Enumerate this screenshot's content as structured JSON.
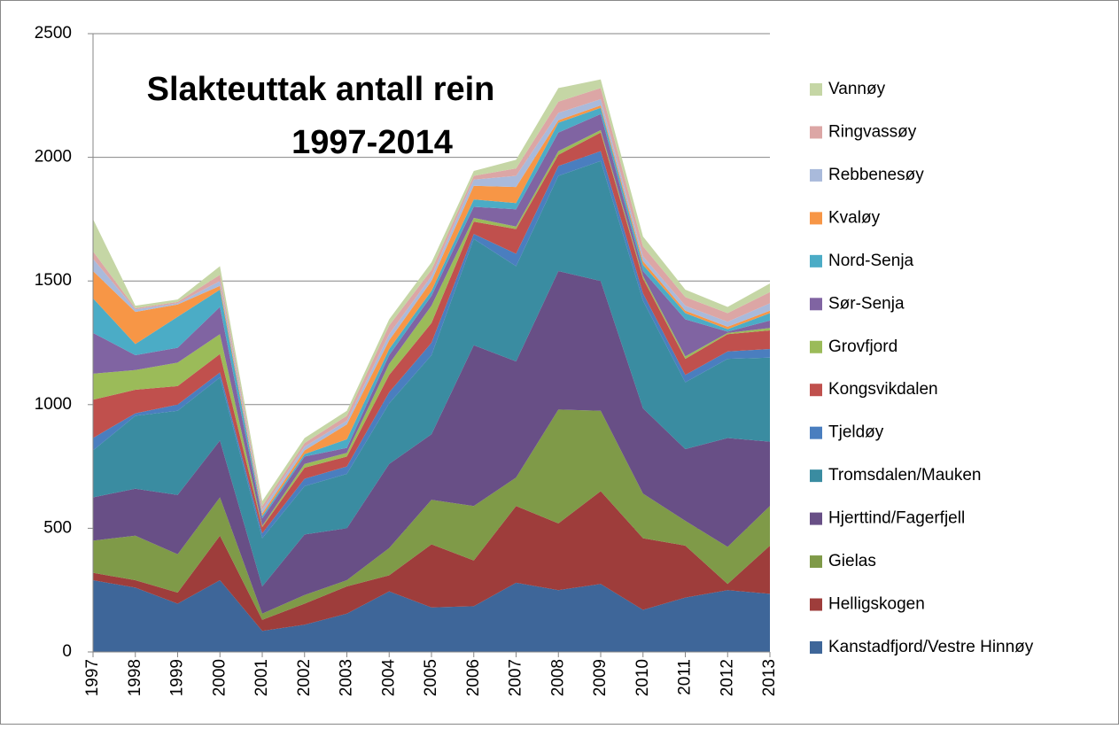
{
  "chart_data": {
    "type": "stacked-area",
    "title": [
      "Slakteuttak antall rein",
      "1997-2014"
    ],
    "categories": [
      "1997",
      "1998",
      "1999",
      "2000",
      "2001",
      "2002",
      "2003",
      "2004",
      "2005",
      "2006",
      "2007",
      "2008",
      "2009",
      "2010",
      "2011",
      "2012",
      "2013"
    ],
    "ylim": [
      0,
      2500
    ],
    "yticks": [
      0,
      500,
      1000,
      1500,
      2000,
      2500
    ],
    "grid": true,
    "legend": "right",
    "series": [
      {
        "name": "Kanstadfjord/Vestre Hinnøy",
        "color": "#3e6699",
        "values": [
          290,
          260,
          195,
          290,
          85,
          110,
          155,
          245,
          180,
          185,
          280,
          250,
          275,
          170,
          220,
          250,
          235
        ]
      },
      {
        "name": "Helligskogen",
        "color": "#9e3d3b",
        "values": [
          30,
          30,
          45,
          180,
          45,
          85,
          110,
          65,
          255,
          185,
          310,
          270,
          375,
          290,
          210,
          25,
          195
        ]
      },
      {
        "name": "Gielas",
        "color": "#7f9a48",
        "values": [
          130,
          180,
          155,
          155,
          25,
          35,
          25,
          110,
          180,
          220,
          115,
          460,
          325,
          180,
          100,
          150,
          160
        ]
      },
      {
        "name": "Hjerttind/Fagerfjell",
        "color": "#684f86",
        "values": [
          175,
          190,
          240,
          230,
          110,
          245,
          210,
          340,
          265,
          650,
          470,
          560,
          525,
          345,
          290,
          440,
          260
        ]
      },
      {
        "name": "Tromsdalen/Mauken",
        "color": "#3a8ca1",
        "values": [
          190,
          295,
          340,
          255,
          195,
          195,
          220,
          245,
          320,
          430,
          385,
          385,
          485,
          435,
          270,
          320,
          340
        ]
      },
      {
        "name": "Tjeldøy",
        "color": "#4a7ebf",
        "values": [
          50,
          10,
          25,
          20,
          20,
          30,
          30,
          45,
          50,
          20,
          50,
          40,
          40,
          30,
          30,
          30,
          35
        ]
      },
      {
        "name": "Kongsvikdalen",
        "color": "#c0504d",
        "values": [
          155,
          95,
          75,
          75,
          25,
          45,
          40,
          70,
          80,
          50,
          100,
          45,
          75,
          60,
          65,
          70,
          75
        ]
      },
      {
        "name": "Grovfjord",
        "color": "#9bbb59",
        "values": [
          105,
          80,
          95,
          80,
          5,
          15,
          15,
          45,
          70,
          15,
          10,
          15,
          10,
          10,
          10,
          5,
          10
        ]
      },
      {
        "name": "Sør-Senja",
        "color": "#8064a2",
        "values": [
          165,
          60,
          60,
          110,
          30,
          30,
          20,
          35,
          40,
          45,
          70,
          75,
          65,
          20,
          150,
          5,
          30
        ]
      },
      {
        "name": "Nord-Senja",
        "color": "#4bacc6",
        "values": [
          140,
          45,
          125,
          70,
          10,
          10,
          35,
          25,
          20,
          30,
          25,
          40,
          25,
          25,
          25,
          10,
          30
        ]
      },
      {
        "name": "Kvaløy",
        "color": "#f79646",
        "values": [
          110,
          130,
          50,
          15,
          10,
          15,
          60,
          35,
          40,
          55,
          65,
          10,
          10,
          15,
          10,
          10,
          10
        ]
      },
      {
        "name": "Rebbenesøy",
        "color": "#a9badb",
        "values": [
          50,
          10,
          5,
          20,
          15,
          15,
          15,
          25,
          20,
          25,
          45,
          30,
          25,
          20,
          20,
          20,
          30
        ]
      },
      {
        "name": "Ringvassøy",
        "color": "#dca6a5",
        "values": [
          30,
          5,
          5,
          25,
          15,
          15,
          20,
          35,
          25,
          15,
          30,
          45,
          45,
          40,
          35,
          35,
          45
        ]
      },
      {
        "name": "Vannøy",
        "color": "#c5d6a5",
        "values": [
          130,
          10,
          10,
          35,
          20,
          20,
          20,
          25,
          30,
          20,
          35,
          55,
          35,
          40,
          30,
          25,
          35
        ]
      }
    ]
  }
}
